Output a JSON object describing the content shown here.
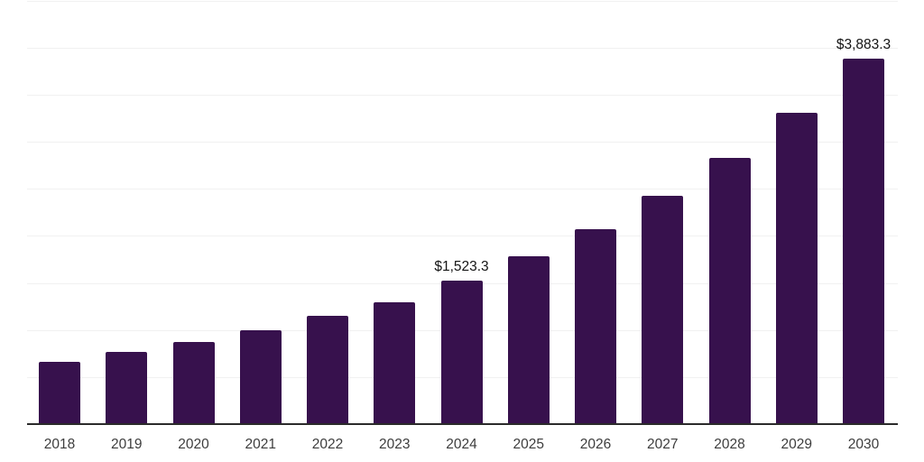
{
  "chart_data": {
    "type": "bar",
    "title": "",
    "xlabel": "",
    "ylabel": "",
    "categories": [
      "2018",
      "2019",
      "2020",
      "2021",
      "2022",
      "2023",
      "2024",
      "2025",
      "2026",
      "2027",
      "2028",
      "2029",
      "2030"
    ],
    "values": [
      665,
      765,
      870,
      1000,
      1155,
      1295,
      1523.3,
      1780,
      2070,
      2430,
      2825,
      3310,
      3883.3
    ],
    "data_labels": [
      {
        "category": "2024",
        "text": "$1,523.3"
      },
      {
        "category": "2030",
        "text": "$3,883.3"
      }
    ],
    "ylim": [
      0,
      4500
    ],
    "grid_step": 500,
    "grid_on": true,
    "legend": "none",
    "y_axis_tick_labels": "none",
    "colors": {
      "bar": "#37114d",
      "gridline": "#f1f1f1",
      "axis_line": "#2b2b2b",
      "data_label_text": "#141414",
      "tick_label_text": "#3d3d3d",
      "background": "#ffffff"
    }
  }
}
